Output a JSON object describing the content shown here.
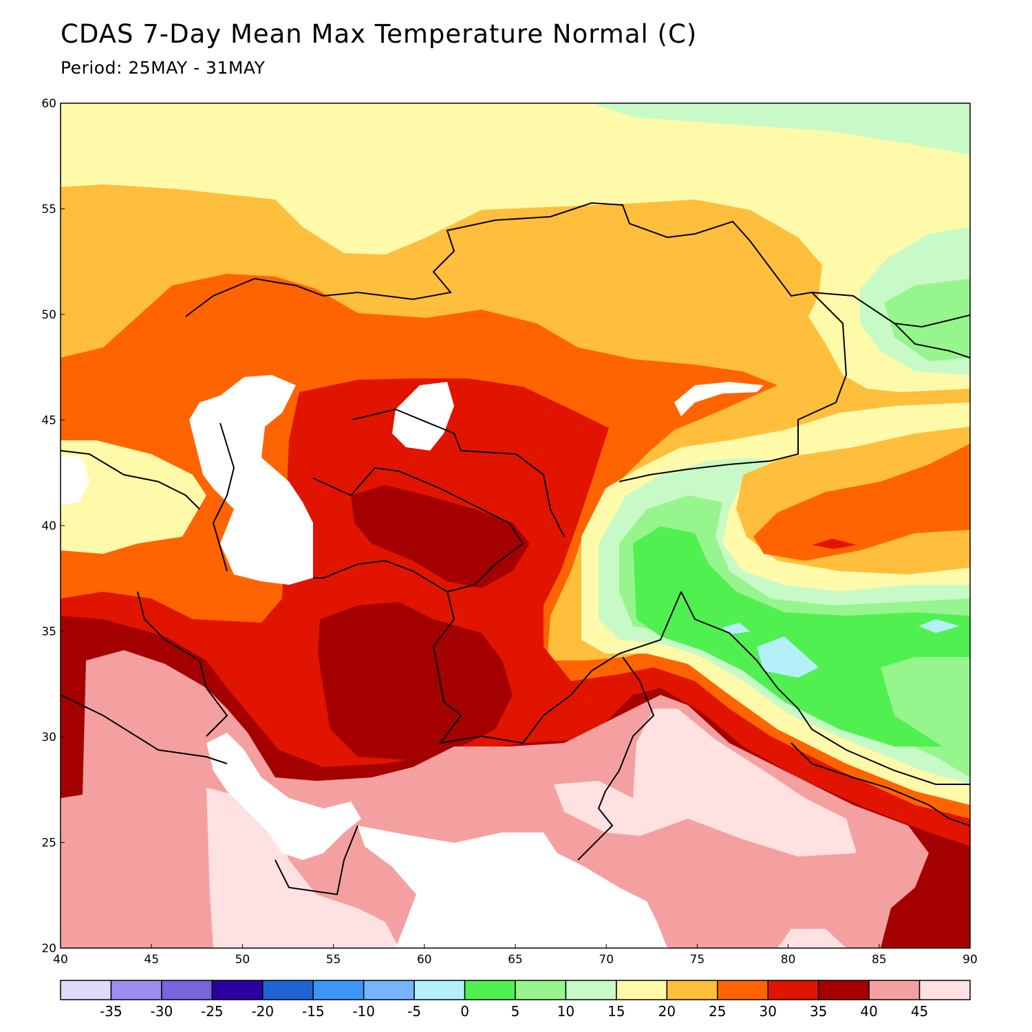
{
  "title": "CDAS 7-Day Mean Max Temperature Normal (C)",
  "subtitle": "Period: 25MAY - 31MAY",
  "axes": {
    "x_ticks": [
      "40",
      "45",
      "50",
      "55",
      "60",
      "65",
      "70",
      "75",
      "80",
      "85",
      "90"
    ],
    "y_ticks": [
      "60",
      "55",
      "50",
      "45",
      "40",
      "35",
      "30",
      "25",
      "20"
    ],
    "lon_range": [
      40,
      90
    ],
    "lat_range": [
      20,
      60
    ]
  },
  "colorbar": {
    "colors": [
      "#dcdcfa",
      "#a08cf0",
      "#7864dc",
      "#2c00a0",
      "#1e64d2",
      "#3c96f5",
      "#78b4fa",
      "#b4f0fa",
      "#50f050",
      "#96f58c",
      "#c8fac8",
      "#fffaaa",
      "#ffbe3c",
      "#ff6400",
      "#e11400",
      "#a50000",
      "#f5a0a0",
      "#ffe1e1"
    ],
    "labels": [
      "-35",
      "-30",
      "-25",
      "-20",
      "-15",
      "-10",
      "-5",
      "0",
      "5",
      "10",
      "15",
      "20",
      "25",
      "30",
      "35",
      "40",
      "45"
    ]
  },
  "legend_colors": {
    "c15_20": "#fffaaa",
    "c20_25": "#ffbe3c",
    "c25_30": "#ff6400",
    "c30_35": "#e11400",
    "c35_40": "#a50000",
    "c40_45": "#f5a0a0",
    "c45_plus": "#ffe1e1",
    "c10_15": "#c8fac8",
    "c5_10": "#96f58c",
    "c0_5": "#50f050",
    "cm5_0": "#b4f0fa",
    "water": "#ffffff"
  }
}
